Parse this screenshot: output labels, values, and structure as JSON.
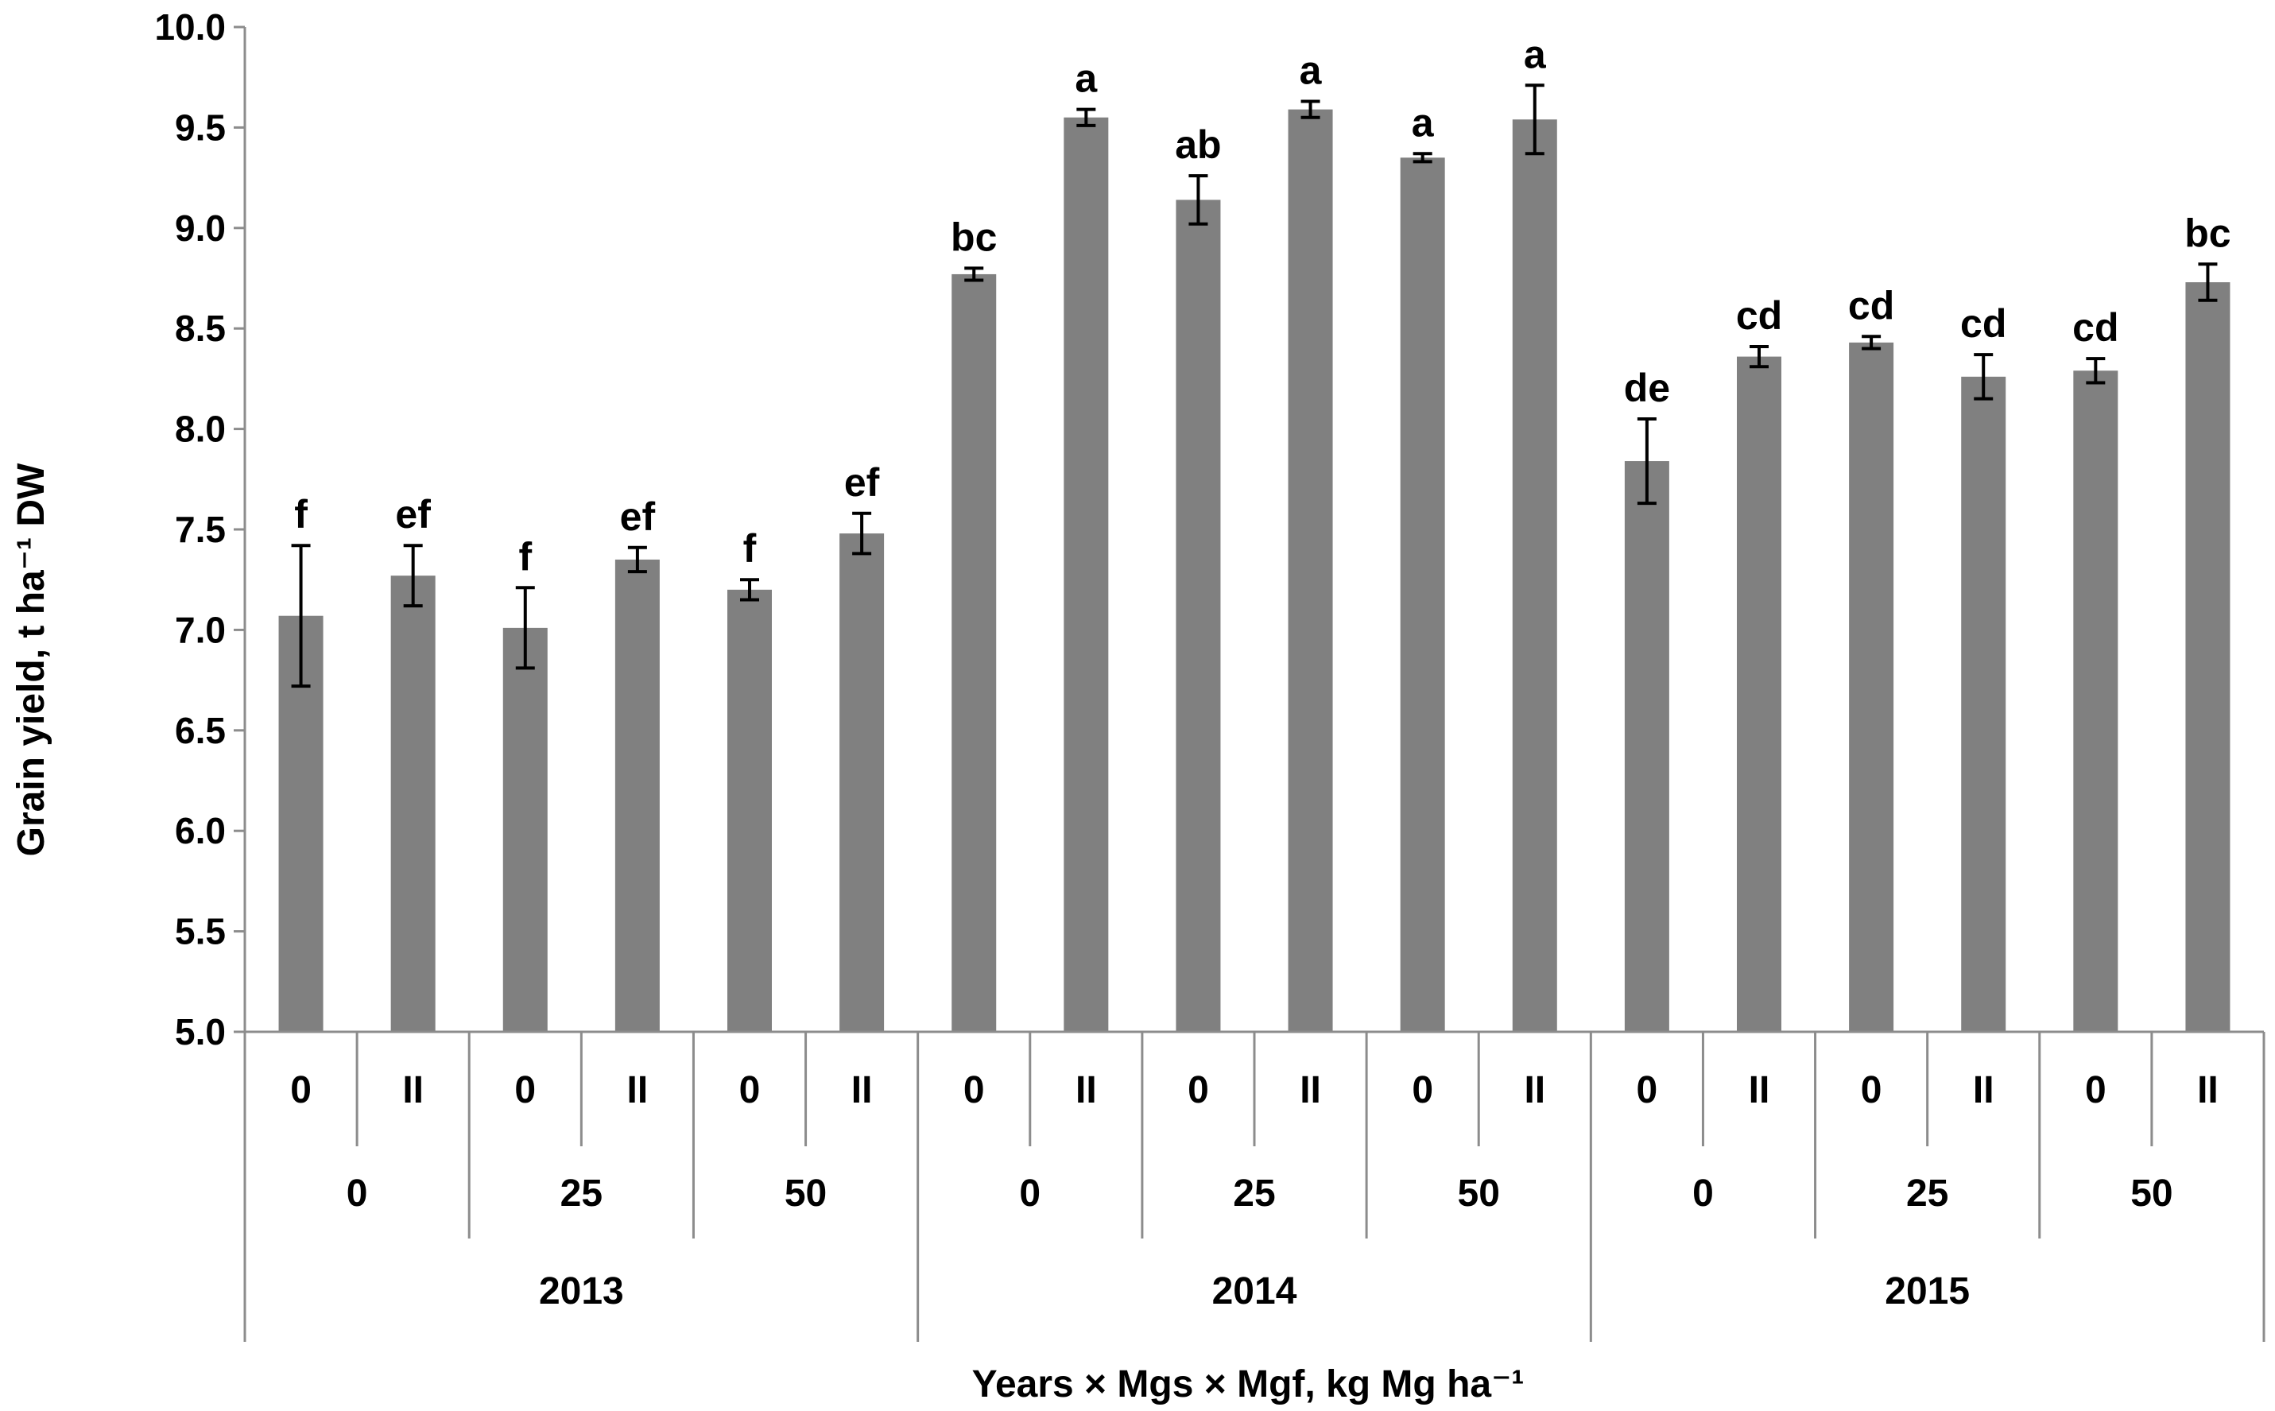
{
  "chart_data": {
    "type": "bar",
    "ylabel": "Grain yield, t ha⁻¹ DW",
    "xlabel": "Years × Mgs × Mgf, kg Mg ha⁻¹",
    "ylim": [
      5.0,
      10.0
    ],
    "yticks": [
      "5.0",
      "5.5",
      "6.0",
      "6.5",
      "7.0",
      "7.5",
      "8.0",
      "8.5",
      "9.0",
      "9.5",
      "10.0"
    ],
    "bar_color": "#808080",
    "grid": false,
    "legend": "none",
    "levels": {
      "mgf": [
        "0",
        "II",
        "0",
        "II",
        "0",
        "II",
        "0",
        "II",
        "0",
        "II",
        "0",
        "II",
        "0",
        "II",
        "0",
        "II",
        "0",
        "II"
      ],
      "mgs": [
        "0",
        "25",
        "50",
        "0",
        "25",
        "50",
        "0",
        "25",
        "50"
      ],
      "years": [
        "2013",
        "2014",
        "2015"
      ]
    },
    "values": [
      7.07,
      7.27,
      7.01,
      7.35,
      7.2,
      7.48,
      8.77,
      9.55,
      9.14,
      9.59,
      9.35,
      9.54,
      7.84,
      8.36,
      8.43,
      8.26,
      8.29,
      8.73
    ],
    "errors": [
      0.35,
      0.15,
      0.2,
      0.06,
      0.05,
      0.1,
      0.03,
      0.04,
      0.12,
      0.04,
      0.02,
      0.17,
      0.21,
      0.05,
      0.03,
      0.11,
      0.06,
      0.09
    ],
    "significance": [
      "f",
      "ef",
      "f",
      "ef",
      "f",
      "ef",
      "bc",
      "a",
      "ab",
      "a",
      "a",
      "a",
      "de",
      "cd",
      "cd",
      "cd",
      "cd",
      "bc"
    ]
  }
}
